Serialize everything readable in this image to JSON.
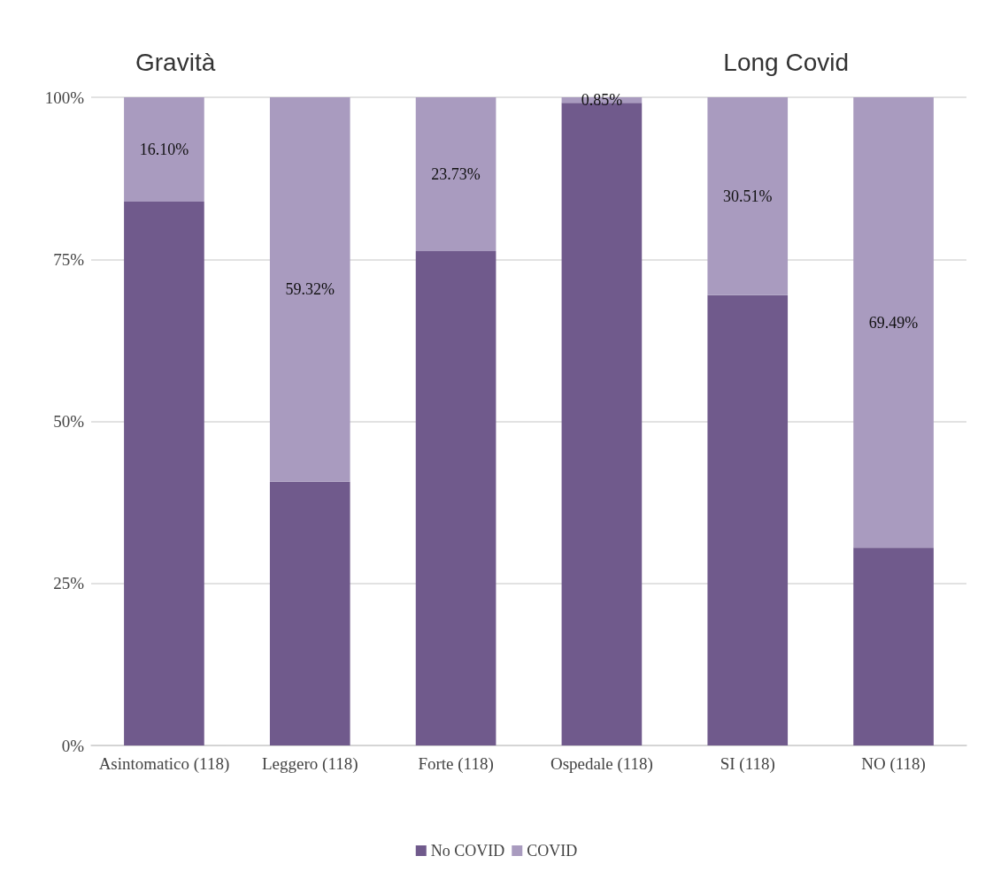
{
  "chart_data": {
    "type": "bar",
    "stacked": true,
    "annotations": [
      "Gravità",
      "Long Covid"
    ],
    "categories": [
      "Asintomatico (118)",
      "Leggero (118)",
      "Forte (118)",
      "Ospedale (118)",
      "SI (118)",
      "NO (118)"
    ],
    "series": [
      {
        "name": "No COVID",
        "color": "#705a8c",
        "values": [
          83.9,
          40.68,
          76.27,
          99.15,
          69.49,
          30.51
        ]
      },
      {
        "name": "COVID",
        "color": "#a99bbf",
        "values": [
          16.1,
          59.32,
          23.73,
          0.85,
          30.51,
          69.49
        ],
        "value_labels": [
          "16.10%",
          "59.32%",
          "23.73%",
          "0.85%",
          "30.51%",
          "69.49%"
        ]
      }
    ],
    "ylim": [
      0,
      100
    ],
    "yticks": [
      {
        "value": 0,
        "label": "0%"
      },
      {
        "value": 25,
        "label": "25%"
      },
      {
        "value": 50,
        "label": "50%"
      },
      {
        "value": 75,
        "label": "75%"
      },
      {
        "value": 100,
        "label": "100%"
      }
    ],
    "grid": "y",
    "legend": "bottom"
  }
}
